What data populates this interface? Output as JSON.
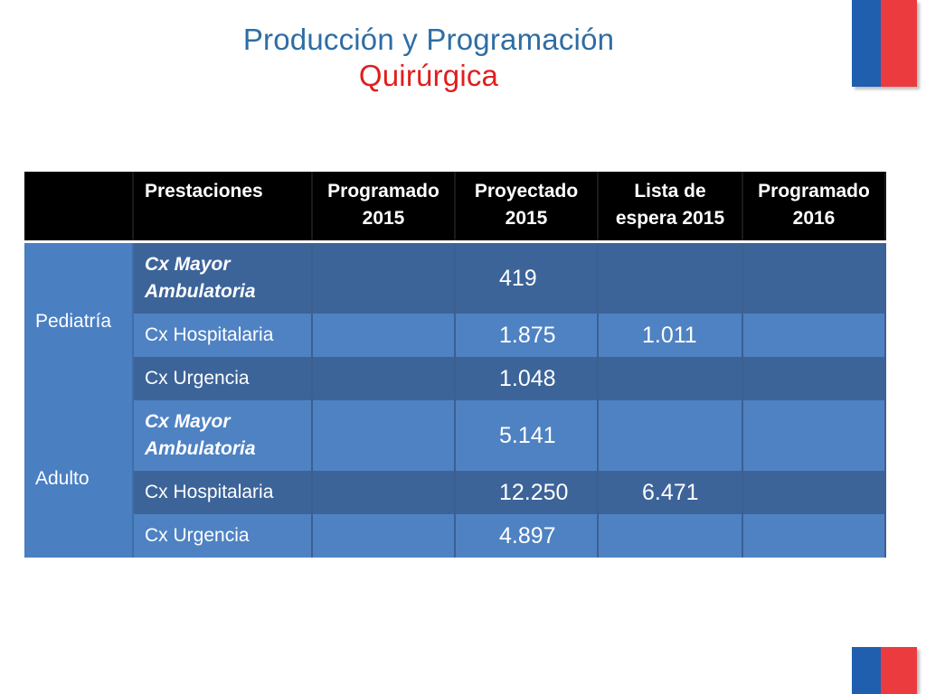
{
  "title": {
    "line1": "Producción y Programación",
    "line2": "Quirúrgica"
  },
  "colors": {
    "title_blue": "#2e6da4",
    "title_red": "#e01e1e",
    "flag_blue": "#1f5fae",
    "flag_red": "#ec3b3f",
    "row_dark": "#3c6499",
    "row_light": "#4f82c3",
    "header_bg": "#000000"
  },
  "table": {
    "headers": {
      "group": "",
      "prestaciones": "Prestaciones",
      "programado_2015": "Programado 2015",
      "proyectado_2015": "Proyectado 2015",
      "lista_espera_2015": "Lista de espera 2015",
      "programado_2016": "Programado 2016"
    },
    "groups": [
      {
        "name": "Pediatría",
        "rows": [
          {
            "prestacion": "Cx Mayor Ambulatoria",
            "programado_2015": "",
            "proyectado_2015": "419",
            "lista_espera_2015": "",
            "programado_2016": ""
          },
          {
            "prestacion": "Cx Hospitalaria",
            "programado_2015": "",
            "proyectado_2015": "1.875",
            "lista_espera_2015": "1.011",
            "programado_2016": ""
          },
          {
            "prestacion": "Cx Urgencia",
            "programado_2015": "",
            "proyectado_2015": "1.048",
            "lista_espera_2015": "",
            "programado_2016": ""
          }
        ]
      },
      {
        "name": "Adulto",
        "rows": [
          {
            "prestacion": "Cx Mayor Ambulatoria",
            "programado_2015": "",
            "proyectado_2015": "5.141",
            "lista_espera_2015": "",
            "programado_2016": ""
          },
          {
            "prestacion": "Cx Hospitalaria",
            "programado_2015": "",
            "proyectado_2015": "12.250",
            "lista_espera_2015": "6.471",
            "programado_2016": ""
          },
          {
            "prestacion": "Cx Urgencia",
            "programado_2015": "",
            "proyectado_2015": "4.897",
            "lista_espera_2015": "",
            "programado_2016": ""
          }
        ]
      }
    ]
  }
}
